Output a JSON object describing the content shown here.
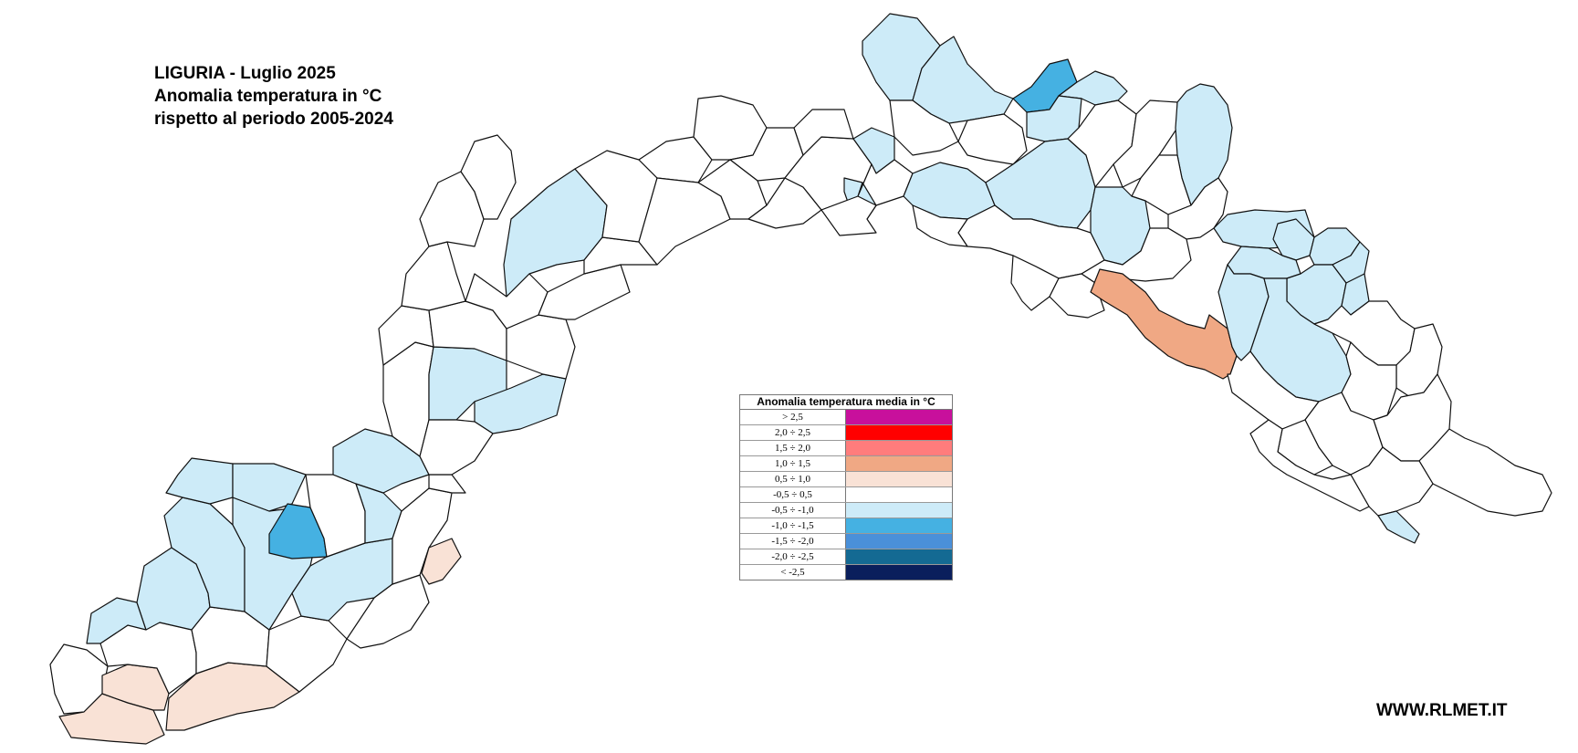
{
  "title": {
    "line1": "LIGURIA - Luglio 2025",
    "line2": "Anomalia temperatura in °C",
    "line3": "rispetto al periodo 2005-2024"
  },
  "legend": {
    "title": "Anomalia temperatura media in °C",
    "classes": [
      {
        "label": "> 2,5",
        "color": "#c8109c"
      },
      {
        "label": "2,0 ÷ 2,5",
        "color": "#ff0000"
      },
      {
        "label": "1,5 ÷ 2,0",
        "color": "#ff7c7c"
      },
      {
        "label": "1,0 ÷ 1,5",
        "color": "#f0a884"
      },
      {
        "label": "0,5 ÷ 1,0",
        "color": "#f9e2d6"
      },
      {
        "label": "-0,5 ÷ 0,5",
        "color": "#ffffff"
      },
      {
        "label": "-0,5 ÷ -1,0",
        "color": "#cdebf8"
      },
      {
        "label": "-1,0 ÷ -1,5",
        "color": "#45b1e2"
      },
      {
        "label": "-1,5 ÷ -2,0",
        "color": "#4a90d9"
      },
      {
        "label": "-2,0 ÷ -2,5",
        "color": "#146a93"
      },
      {
        "label": "< -2,5",
        "color": "#0a1f5c"
      }
    ]
  },
  "website": "WWW.RLMET.IT",
  "colors": {
    "outline": "#111111",
    "neutral": "#ffffff",
    "light_blue": "#cdebf8",
    "blue": "#45b1e2",
    "light_peach": "#f9e2d6",
    "orange": "#f0a884"
  }
}
